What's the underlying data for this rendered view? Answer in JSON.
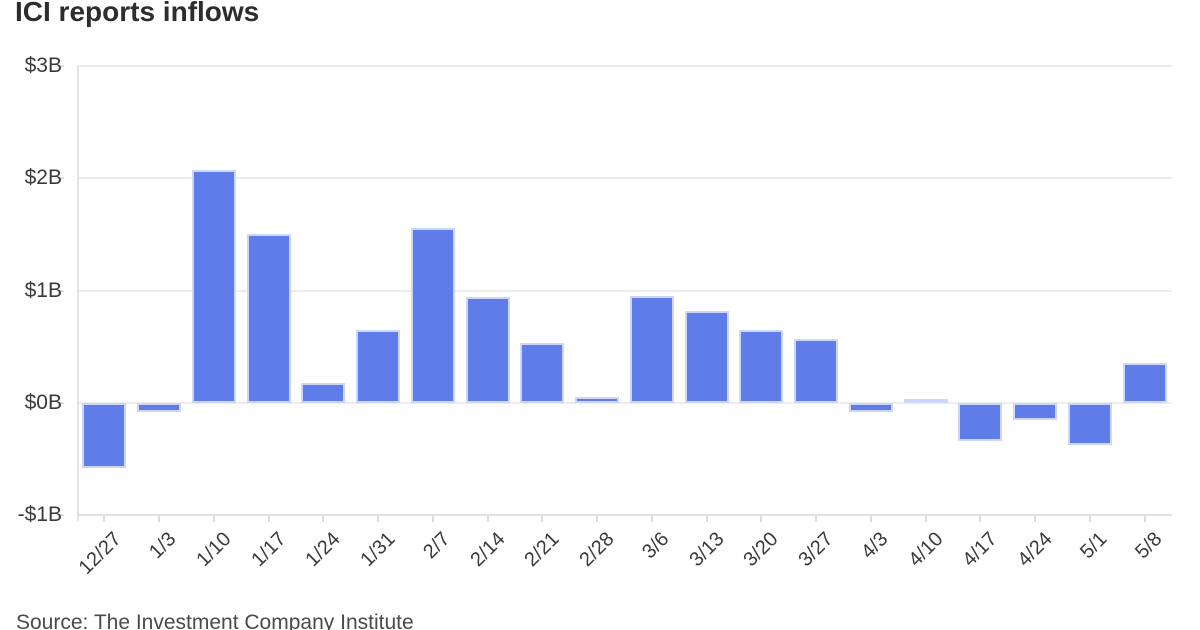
{
  "title": "ICI reports inflows",
  "source": "Source: The Investment Company Institute",
  "chart_data": {
    "type": "bar",
    "title": "ICI reports inflows",
    "categories": [
      "12/27",
      "1/3",
      "1/10",
      "1/17",
      "1/24",
      "1/31",
      "2/7",
      "2/14",
      "2/21",
      "2/28",
      "3/6",
      "3/13",
      "3/20",
      "3/27",
      "4/3",
      "4/10",
      "4/17",
      "4/24",
      "5/1",
      "5/8"
    ],
    "values": [
      -0.58,
      -0.08,
      2.07,
      1.5,
      0.18,
      0.65,
      1.56,
      0.94,
      0.53,
      0.05,
      0.95,
      0.82,
      0.65,
      0.57,
      -0.08,
      0.02,
      -0.34,
      -0.15,
      -0.38,
      0.35
    ],
    "y_tick_labels": [
      "$3B",
      "$2B",
      "$1B",
      "$0B",
      "-$1B"
    ],
    "y_tick_values": [
      3,
      2,
      1,
      0,
      -1
    ],
    "ylim": [
      -1,
      3
    ],
    "grid": true,
    "legend": "none",
    "colors": {
      "bar_fill": "#5f7de8",
      "bar_border": "#cdd6f9",
      "gridline": "#ededed",
      "axis": "#e2e2e2",
      "tick_label": "#3a3a3a",
      "title_text": "#2d2d2d",
      "source_text": "#4a4a4a"
    }
  }
}
